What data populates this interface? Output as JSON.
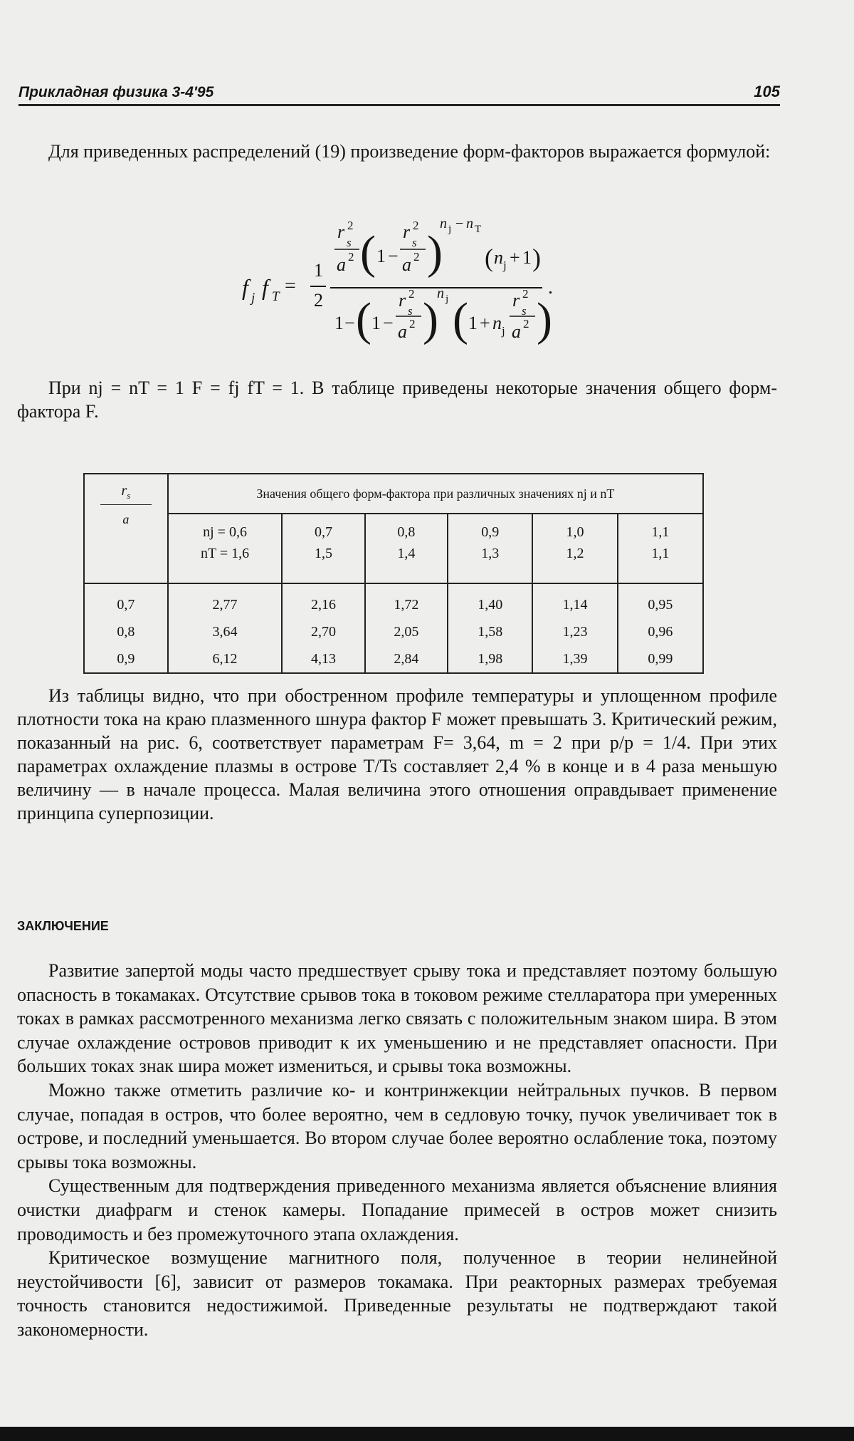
{
  "header": {
    "journal": "Прикладная физика 3-4'95",
    "page": "105"
  },
  "intro": "Для приведенных распределений (19) произведение форм-факторов выражается формулой:",
  "formula": {
    "tokens": [
      "f",
      "j",
      "f",
      "T",
      "=",
      "1",
      "2",
      "r",
      "2",
      "s",
      "a",
      "2",
      "(",
      "1",
      "−",
      "r",
      "2",
      "s",
      "a",
      "2",
      ")",
      "n",
      "j",
      "−",
      "n",
      "T",
      "(",
      "n",
      "j",
      "+",
      "1",
      ")",
      "1",
      "−",
      "(",
      "1",
      "−",
      "r",
      "2",
      "s",
      "a",
      "2",
      ")",
      "n",
      "j",
      "(",
      "1",
      "+",
      "n",
      "j",
      "r",
      "2",
      "s",
      "a",
      "2",
      ")",
      "."
    ]
  },
  "after_formula": "При nj = nT = 1   F = fj fT = 1. В таблице приведены некоторые значения общего форм-фактора F.",
  "table": {
    "corner_top": "r",
    "corner_top_sub": "s",
    "corner_bottom": "a",
    "header": "Значения общего форм-фактора при различных значениях nj и nT",
    "params": [
      [
        "nj = 0,6",
        "nT = 1,6"
      ],
      [
        "0,7",
        "1,5"
      ],
      [
        "0,8",
        "1,4"
      ],
      [
        "0,9",
        "1,3"
      ],
      [
        "1,0",
        "1,2"
      ],
      [
        "1,1",
        "1,1"
      ]
    ],
    "rows": [
      [
        "0,7",
        "2,77",
        "2,16",
        "1,72",
        "1,40",
        "1,14",
        "0,95"
      ],
      [
        "0,8",
        "3,64",
        "2,70",
        "2,05",
        "1,58",
        "1,23",
        "0,96"
      ],
      [
        "0,9",
        "6,12",
        "4,13",
        "2,84",
        "1,98",
        "1,39",
        "0,99"
      ]
    ]
  },
  "discussion": "Из таблицы видно, что при обостренном профиле температуры и уплощенном профиле плотности тока на краю плазменного шнура фактор F может превышать 3. Критический режим, показанный на рис. 6, соответствует параметрам F= 3,64, m = 2 при p/p = 1/4. При этих параметрах охлаждение плазмы в острове T/Ts составляет 2,4 % в конце и в 4 раза меньшую величину — в начале процесса. Малая величина этого отношения оправдывает применение принципа суперпозиции.",
  "conclusion": {
    "title": "ЗАКЛЮЧЕНИЕ",
    "paragraphs": [
      "Развитие запертой моды часто предшествует срыву тока и представляет поэтому большую опасность в токамаках. Отсутствие срывов тока в токовом режиме стелларатора при умеренных токах в рамках рассмотренного механизма легко связать с положительным знаком шира. В этом случае охлаждение островов приводит к их уменьшению и не представляет опасности. При больших токах знак шира может измениться, и срывы тока возможны.",
      "Можно также отметить различие ко- и контринжекции нейтральных пучков. В первом случае, попадая в остров, что более вероятно, чем в седловую точку, пучок увеличивает ток в острове, и последний уменьшается. Во втором случае более вероятно ослабление тока, поэтому срывы тока возможны.",
      "Существенным для подтверждения приведенного механизма является объяснение влияния очистки диафрагм и стенок камеры. Попадание примесей в остров может снизить проводимость и без промежуточного этапа охлаждения.",
      "Критическое возмущение магнитного поля, полученное в теории нелинейной неустойчивости [6], зависит от размеров токамака. При реакторных размерах требуемая точность становится недостижимой. Приведенные результаты не подтверждают такой закономерности."
    ]
  }
}
